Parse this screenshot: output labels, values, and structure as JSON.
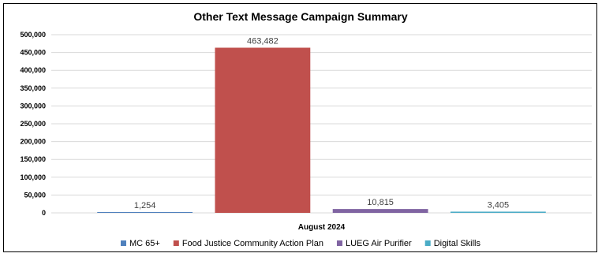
{
  "chart_data": {
    "type": "bar",
    "title": "Other Text Message Campaign Summary",
    "categories": [
      "August 2024"
    ],
    "xlabel": "",
    "ylabel": "",
    "ylim": [
      0,
      500000
    ],
    "yticks": [
      0,
      50000,
      100000,
      150000,
      200000,
      250000,
      300000,
      350000,
      400000,
      450000,
      500000
    ],
    "ytick_labels": [
      "0",
      "50,000",
      "100,000",
      "150,000",
      "200,000",
      "250,000",
      "300,000",
      "350,000",
      "400,000",
      "450,000",
      "500,000"
    ],
    "grid": true,
    "legend_position": "bottom",
    "series": [
      {
        "name": "MC 65+",
        "values": [
          1254
        ],
        "label": "1,254",
        "color": "#4f81bd"
      },
      {
        "name": "Food Justice Community Action Plan",
        "values": [
          463482
        ],
        "label": "463,482",
        "color": "#c0504d"
      },
      {
        "name": "LUEG Air Purifier",
        "values": [
          10815
        ],
        "label": "10,815",
        "color": "#8064a2"
      },
      {
        "name": "Digital Skills",
        "values": [
          3405
        ],
        "label": "3,405",
        "color": "#4bacc6"
      }
    ]
  }
}
